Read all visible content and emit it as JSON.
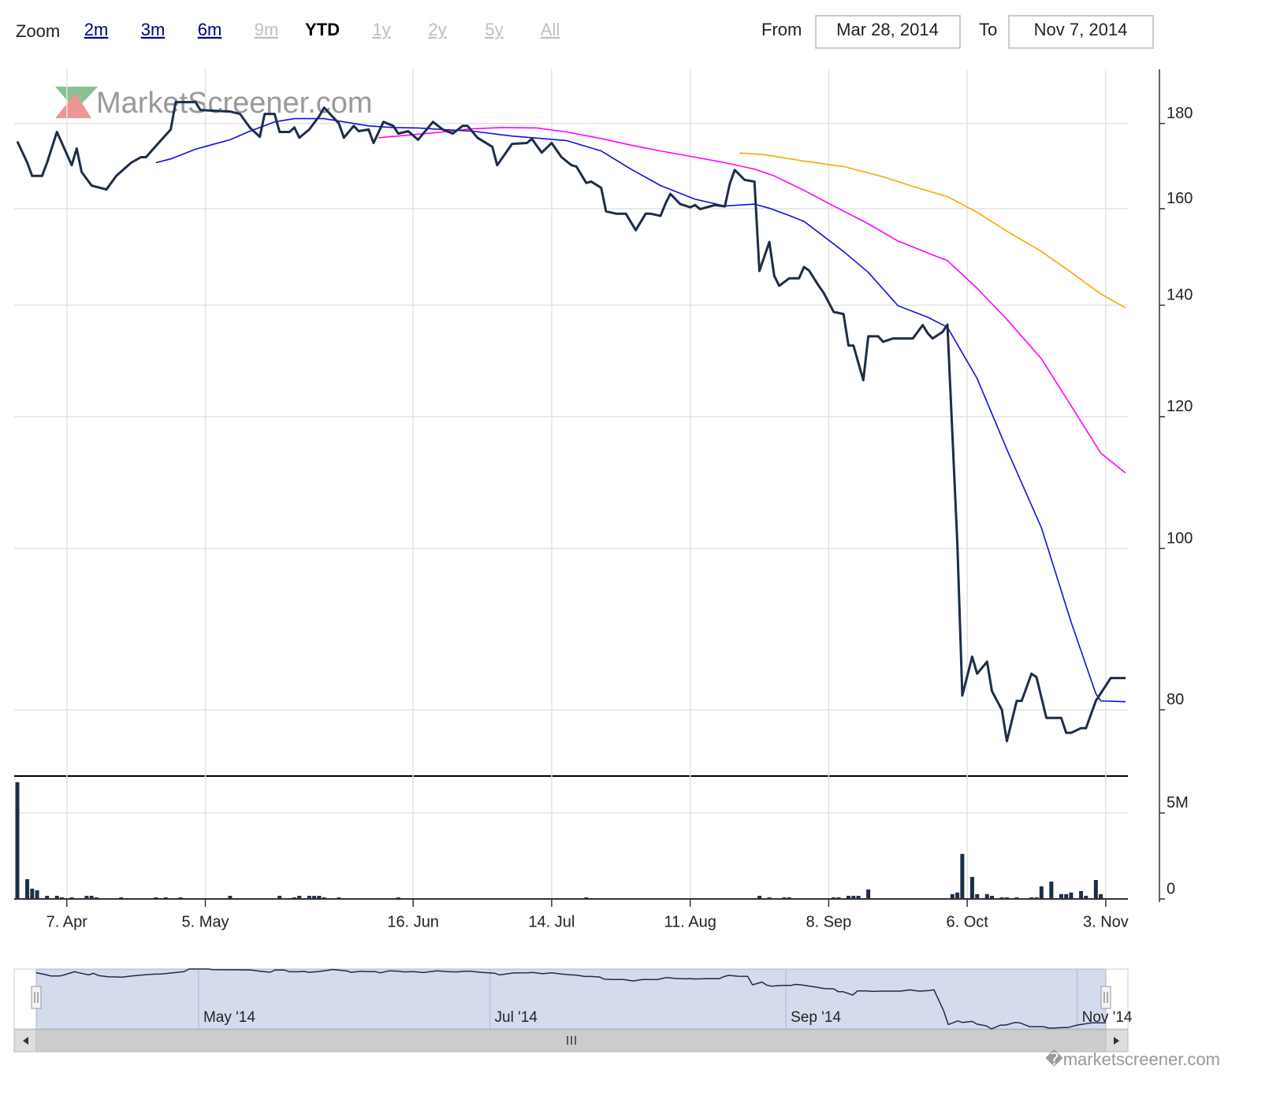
{
  "toolbar": {
    "zoom_label": "Zoom",
    "zoom_buttons": [
      {
        "label": "2m",
        "state": "link"
      },
      {
        "label": "3m",
        "state": "link"
      },
      {
        "label": "6m",
        "state": "link"
      },
      {
        "label": "9m",
        "state": "disabled"
      },
      {
        "label": "YTD",
        "state": "selected"
      },
      {
        "label": "1y",
        "state": "disabled"
      },
      {
        "label": "2y",
        "state": "disabled"
      },
      {
        "label": "5y",
        "state": "disabled"
      },
      {
        "label": "All",
        "state": "disabled"
      }
    ],
    "from_label": "From",
    "from_value": "Mar 28, 2014",
    "to_label": "To",
    "to_value": "Nov 7, 2014"
  },
  "watermark": "MarketScreener.com",
  "footer": "�marketscreener.com",
  "chart_data": [
    {
      "type": "line",
      "log_scale": true,
      "grid": true,
      "xlim": [
        "2014-03-28",
        "2014-11-07"
      ],
      "xticks": [
        {
          "value": "2014-04-07",
          "label": "7. Apr"
        },
        {
          "value": "2014-05-05",
          "label": "5. May"
        },
        {
          "value": "2014-06-16",
          "label": "16. Jun"
        },
        {
          "value": "2014-07-14",
          "label": "14. Jul"
        },
        {
          "value": "2014-08-11",
          "label": "11. Aug"
        },
        {
          "value": "2014-09-08",
          "label": "8. Sep"
        },
        {
          "value": "2014-10-06",
          "label": "6. Oct"
        },
        {
          "value": "2014-11-03",
          "label": "3. Nov"
        }
      ],
      "ylim": [
        73,
        194
      ],
      "yticks": [
        80,
        100,
        120,
        140,
        160,
        180
      ],
      "series": [
        {
          "color": "#1c2e47",
          "x": [
            "2014-03-28",
            "2014-03-30",
            "2014-03-31",
            "2014-04-02",
            "2014-04-03",
            "2014-04-05",
            "2014-04-06",
            "2014-04-08",
            "2014-04-09",
            "2014-04-10",
            "2014-04-12",
            "2014-04-15",
            "2014-04-17",
            "2014-04-20",
            "2014-04-22",
            "2014-04-23",
            "2014-04-25",
            "2014-04-28",
            "2014-04-29",
            "2014-05-03",
            "2014-05-04",
            "2014-05-10",
            "2014-05-12",
            "2014-05-14",
            "2014-05-16",
            "2014-05-17",
            "2014-05-19",
            "2014-05-20",
            "2014-05-22",
            "2014-05-23",
            "2014-05-24",
            "2014-05-26",
            "2014-05-28",
            "2014-05-29",
            "2014-06-01",
            "2014-06-02",
            "2014-06-04",
            "2014-06-05",
            "2014-06-07",
            "2014-06-08",
            "2014-06-10",
            "2014-06-12",
            "2014-06-13",
            "2014-06-15",
            "2014-06-17",
            "2014-06-20",
            "2014-06-22",
            "2014-06-24",
            "2014-06-26",
            "2014-06-27",
            "2014-06-29",
            "2014-07-02",
            "2014-07-03",
            "2014-07-06",
            "2014-07-09",
            "2014-07-10",
            "2014-07-12",
            "2014-07-14",
            "2014-07-16",
            "2014-07-18",
            "2014-07-19",
            "2014-07-21",
            "2014-07-22",
            "2014-07-24",
            "2014-07-25",
            "2014-07-27",
            "2014-07-29",
            "2014-07-31",
            "2014-08-02",
            "2014-08-03",
            "2014-08-05",
            "2014-08-06",
            "2014-08-07",
            "2014-08-09",
            "2014-08-11",
            "2014-08-12",
            "2014-08-13",
            "2014-08-15",
            "2014-08-16",
            "2014-08-18",
            "2014-08-19",
            "2014-08-20",
            "2014-08-22",
            "2014-08-24",
            "2014-08-25",
            "2014-08-27",
            "2014-08-28",
            "2014-08-29",
            "2014-08-31",
            "2014-09-02",
            "2014-09-03",
            "2014-09-04",
            "2014-09-06",
            "2014-09-07",
            "2014-09-09",
            "2014-09-11",
            "2014-09-12",
            "2014-09-13",
            "2014-09-15",
            "2014-09-16",
            "2014-09-18",
            "2014-09-19",
            "2014-09-21",
            "2014-09-25",
            "2014-09-27",
            "2014-09-28",
            "2014-09-29",
            "2014-10-01",
            "2014-10-02",
            "2014-10-04",
            "2014-10-05",
            "2014-10-07",
            "2014-10-08",
            "2014-10-10",
            "2014-10-11",
            "2014-10-13",
            "2014-10-14",
            "2014-10-16",
            "2014-10-17",
            "2014-10-19",
            "2014-10-20",
            "2014-10-22",
            "2014-10-25",
            "2014-10-26",
            "2014-10-27",
            "2014-10-29",
            "2014-10-30",
            "2014-11-01",
            "2014-11-04",
            "2014-11-07"
          ],
          "values": [
            175.6,
            170.5,
            167.4,
            167.4,
            170.5,
            177.9,
            175.2,
            169.9,
            173.9,
            168.3,
            165.2,
            164.3,
            167.4,
            170.5,
            171.8,
            171.8,
            174.5,
            178.5,
            185.4,
            185.4,
            183.4,
            183.0,
            182.4,
            179.0,
            176.7,
            182.4,
            182.4,
            177.9,
            177.9,
            179.0,
            176.5,
            178.5,
            181.8,
            184.0,
            180.0,
            176.5,
            179.4,
            178.1,
            178.5,
            175.2,
            180.4,
            179.4,
            177.5,
            178.1,
            176.0,
            180.4,
            178.5,
            177.5,
            179.4,
            179.4,
            176.5,
            174.3,
            169.9,
            175.0,
            175.2,
            176.2,
            172.9,
            175.2,
            171.8,
            169.9,
            169.6,
            165.8,
            166.1,
            164.7,
            159.4,
            158.9,
            158.9,
            155.3,
            158.9,
            158.9,
            158.4,
            161.1,
            163.3,
            161.0,
            160.3,
            160.8,
            159.9,
            160.5,
            160.8,
            160.5,
            165.6,
            168.8,
            166.5,
            166.1,
            146.8,
            152.8,
            145.8,
            143.8,
            145.3,
            145.3,
            147.6,
            146.9,
            143.8,
            142.4,
            138.7,
            138.3,
            132.4,
            132.4,
            126.2,
            134.1,
            134.1,
            133.1,
            133.7,
            133.7,
            136.2,
            134.7,
            133.7,
            134.9,
            136.3,
            100.7,
            81.6,
            86.1,
            84.1,
            85.5,
            82.1,
            80,
            76.6,
            81.0,
            81.0,
            84.1,
            83.7,
            79.1,
            79.1,
            77.5,
            77.5,
            78.0,
            78.0,
            81.0,
            83.6,
            83.6
          ]
        },
        {
          "color": "#1010e0",
          "x": [
            "2014-04-25",
            "2014-04-28",
            "2014-05-03",
            "2014-05-06",
            "2014-05-10",
            "2014-05-14",
            "2014-05-19",
            "2014-05-23",
            "2014-05-29",
            "2014-06-03",
            "2014-06-07",
            "2014-06-12",
            "2014-06-17",
            "2014-06-22",
            "2014-06-28",
            "2014-07-06",
            "2014-07-12",
            "2014-07-17",
            "2014-07-24",
            "2014-07-30",
            "2014-08-05",
            "2014-08-12",
            "2014-08-18",
            "2014-08-24",
            "2014-08-27",
            "2014-08-31",
            "2014-09-03",
            "2014-09-06",
            "2014-09-11",
            "2014-09-16",
            "2014-09-22",
            "2014-09-28",
            "2014-10-02",
            "2014-10-08",
            "2014-10-14",
            "2014-10-21",
            "2014-10-27",
            "2014-11-01",
            "2014-11-02",
            "2014-11-07"
          ],
          "values": [
            170.5,
            171.4,
            173.7,
            174.7,
            176.0,
            178.1,
            180.4,
            181.2,
            181.2,
            180.2,
            179.4,
            179.0,
            178.9,
            178.5,
            178.1,
            176.9,
            176.3,
            175.8,
            173.3,
            169.0,
            165.2,
            162.1,
            160.6,
            161.0,
            160.1,
            158.5,
            157.2,
            154.8,
            150.8,
            146.5,
            139.9,
            137.7,
            135.8,
            126.5,
            114.7,
            102.9,
            90.3,
            81.8,
            81.0,
            80.9
          ]
        },
        {
          "color": "#ff00ff",
          "x": [
            "2014-06-09",
            "2014-06-15",
            "2014-06-22",
            "2014-06-28",
            "2014-07-04",
            "2014-07-11",
            "2014-07-17",
            "2014-07-24",
            "2014-07-30",
            "2014-08-05",
            "2014-08-12",
            "2014-08-18",
            "2014-08-24",
            "2014-08-28",
            "2014-09-03",
            "2014-09-09",
            "2014-09-16",
            "2014-09-22",
            "2014-09-28",
            "2014-10-02",
            "2014-10-08",
            "2014-10-14",
            "2014-10-21",
            "2014-10-27",
            "2014-11-02",
            "2014-11-07"
          ],
          "values": [
            176.5,
            177.1,
            177.9,
            178.7,
            179.0,
            178.9,
            177.9,
            176.3,
            174.7,
            173.3,
            171.8,
            170.5,
            169.0,
            167.4,
            164.1,
            160.6,
            156.7,
            153.0,
            150.5,
            148.9,
            143.3,
            137.3,
            130.0,
            121.8,
            114.1,
            111.0
          ]
        },
        {
          "color": "#ffa500",
          "x": [
            "2014-08-21",
            "2014-08-26",
            "2014-09-03",
            "2014-09-11",
            "2014-09-19",
            "2014-09-25",
            "2014-10-02",
            "2014-10-08",
            "2014-10-14",
            "2014-10-21",
            "2014-10-27",
            "2014-11-02",
            "2014-11-07"
          ],
          "values": [
            172.8,
            172.4,
            170.9,
            169.6,
            167.2,
            165.0,
            162.7,
            159.2,
            155.1,
            150.8,
            146.5,
            142.2,
            139.5
          ]
        }
      ]
    },
    {
      "type": "bar",
      "grid": true,
      "color": "#1c2e47",
      "xlim": [
        "2014-03-28",
        "2014-11-07"
      ],
      "ylim": [
        0,
        7150000
      ],
      "yticks": [
        0,
        {
          "value": 5000000,
          "label": "5M"
        }
      ],
      "x": [
        "2014-03-28",
        "2014-03-30",
        "2014-03-31",
        "2014-04-01",
        "2014-04-03",
        "2014-04-05",
        "2014-04-06",
        "2014-04-08",
        "2014-04-11",
        "2014-04-12",
        "2014-04-13",
        "2014-04-18",
        "2014-04-25",
        "2014-04-27",
        "2014-04-30",
        "2014-05-10",
        "2014-05-20",
        "2014-05-23",
        "2014-05-24",
        "2014-05-26",
        "2014-05-27",
        "2014-05-28",
        "2014-05-29",
        "2014-06-01",
        "2014-06-13",
        "2014-07-21",
        "2014-08-25",
        "2014-08-27",
        "2014-08-30",
        "2014-08-31",
        "2014-09-09",
        "2014-09-10",
        "2014-09-12",
        "2014-09-13",
        "2014-09-14",
        "2014-09-16",
        "2014-10-03",
        "2014-10-04",
        "2014-10-05",
        "2014-10-07",
        "2014-10-08",
        "2014-10-10",
        "2014-10-11",
        "2014-10-13",
        "2014-10-14",
        "2014-10-16",
        "2014-10-19",
        "2014-10-20",
        "2014-10-21",
        "2014-10-23",
        "2014-10-25",
        "2014-10-26",
        "2014-10-27",
        "2014-10-29",
        "2014-10-30",
        "2014-11-01",
        "2014-11-02"
      ],
      "values": [
        6790000,
        1150000,
        600000,
        500000,
        180000,
        180000,
        90000,
        90000,
        180000,
        180000,
        90000,
        90000,
        90000,
        90000,
        90000,
        180000,
        180000,
        90000,
        180000,
        180000,
        180000,
        180000,
        90000,
        90000,
        90000,
        90000,
        180000,
        90000,
        90000,
        90000,
        90000,
        90000,
        180000,
        180000,
        180000,
        550000,
        280000,
        370000,
        2620000,
        1280000,
        280000,
        280000,
        180000,
        90000,
        90000,
        90000,
        90000,
        90000,
        730000,
        1010000,
        280000,
        280000,
        370000,
        460000,
        180000,
        1100000,
        280000
      ]
    },
    {
      "type": "navigator",
      "xlim": [
        "2014-03-28",
        "2014-11-07"
      ],
      "xticks": [
        {
          "value": "2014-05-01",
          "label": "May '14"
        },
        {
          "value": "2014-07-01",
          "label": "Jul '14"
        },
        {
          "value": "2014-09-01",
          "label": "Sep '14"
        },
        {
          "value": "2014-11-01",
          "label": "Nov '14"
        }
      ]
    }
  ]
}
